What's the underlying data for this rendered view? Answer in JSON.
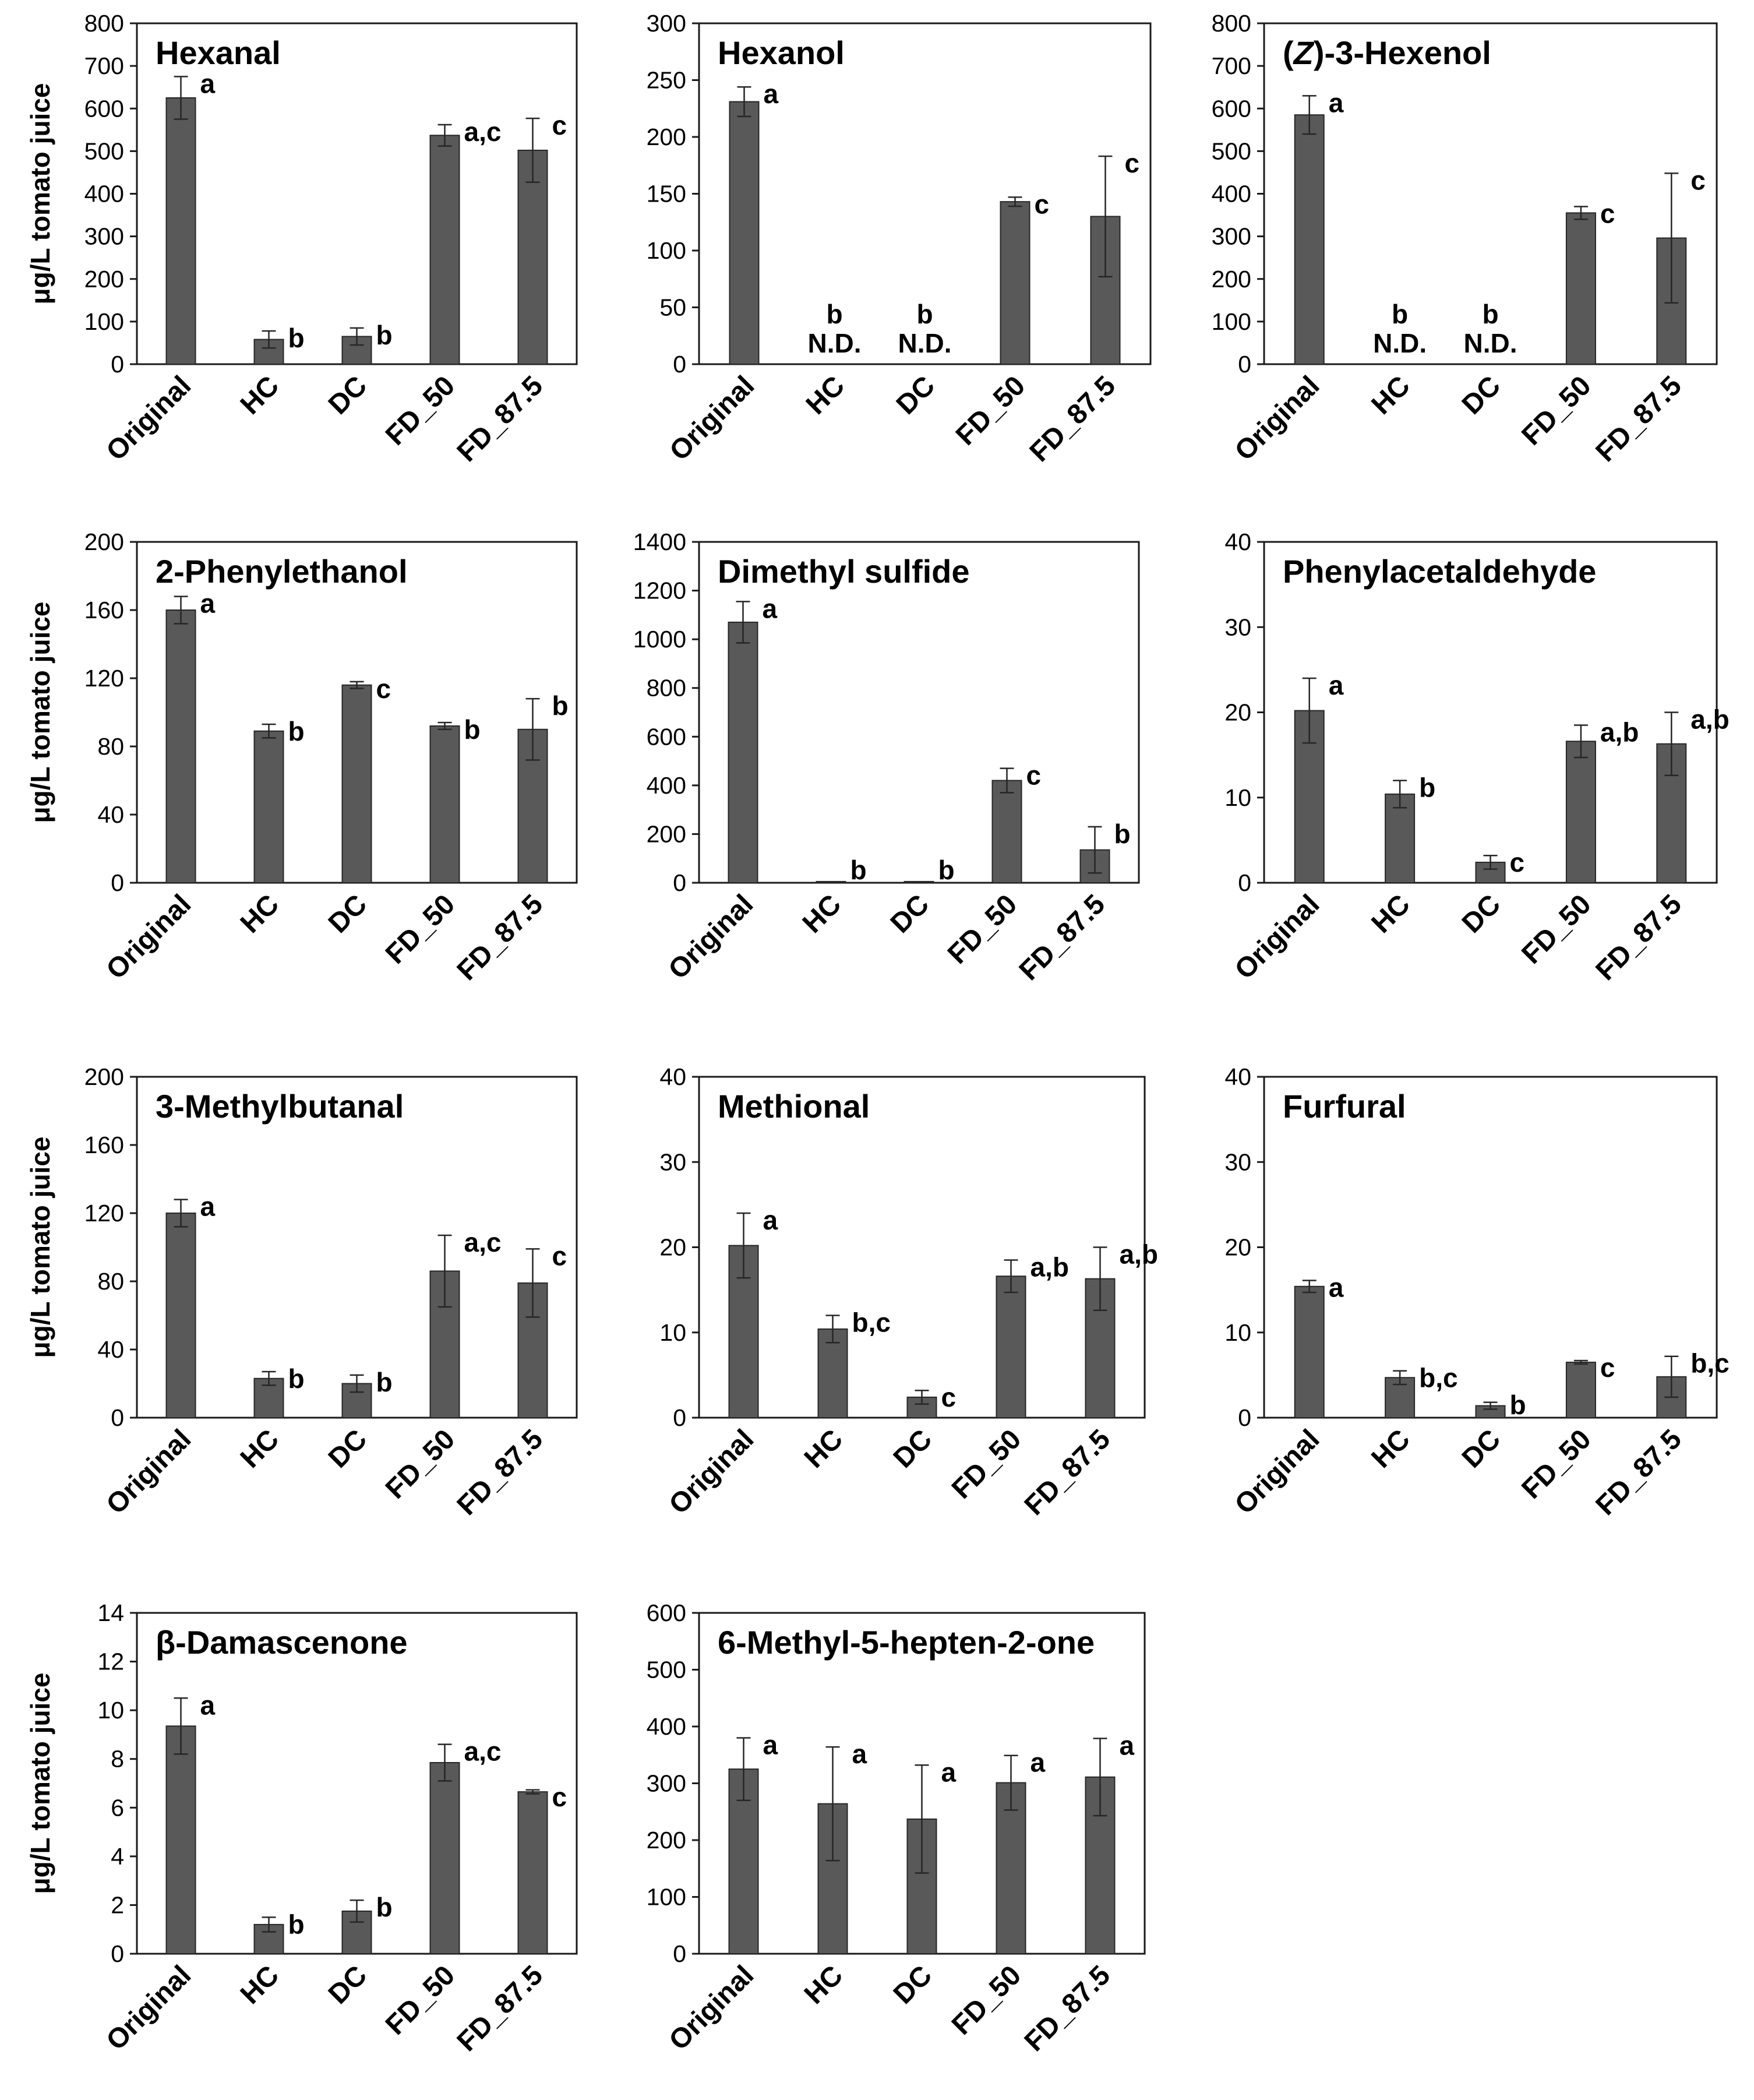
{
  "chart_data": [
    {
      "type": "bar",
      "title": "Hexanal",
      "ylabel": "μg/L tomato juice",
      "ylim": [
        0,
        800
      ],
      "yticks": [
        0,
        100,
        200,
        300,
        400,
        500,
        600,
        700,
        800
      ],
      "categories": [
        "Original",
        "HC",
        "DC",
        "FD_50",
        "FD_87.5"
      ],
      "values": [
        625,
        58,
        65,
        537,
        502
      ],
      "errors": [
        50,
        20,
        20,
        25,
        75
      ],
      "significance": [
        "a",
        "b",
        "b",
        "a,c",
        "c"
      ],
      "not_detected": [
        false,
        false,
        false,
        false,
        false
      ]
    },
    {
      "type": "bar",
      "title": "Hexanol",
      "ylabel": "",
      "ylim": [
        0,
        300
      ],
      "yticks": [
        0,
        50,
        100,
        150,
        200,
        250,
        300
      ],
      "categories": [
        "Original",
        "HC",
        "DC",
        "FD_50",
        "FD_87.5"
      ],
      "values": [
        231,
        0,
        0,
        143,
        130
      ],
      "errors": [
        13,
        0,
        0,
        4,
        53
      ],
      "significance": [
        "a",
        "b",
        "b",
        "c",
        "c"
      ],
      "not_detected": [
        false,
        true,
        true,
        false,
        false
      ],
      "nd_label": "N.D."
    },
    {
      "type": "bar",
      "title": "(Z)-3-Hexenol",
      "ylabel": "",
      "ylim": [
        0,
        800
      ],
      "yticks": [
        0,
        100,
        200,
        300,
        400,
        500,
        600,
        700,
        800
      ],
      "categories": [
        "Original",
        "HC",
        "DC",
        "FD_50",
        "FD_87.5"
      ],
      "values": [
        585,
        0,
        0,
        355,
        296
      ],
      "errors": [
        45,
        0,
        0,
        15,
        152
      ],
      "significance": [
        "a",
        "b",
        "b",
        "c",
        "c"
      ],
      "not_detected": [
        false,
        true,
        true,
        false,
        false
      ],
      "nd_label": "N.D."
    },
    {
      "type": "bar",
      "title": "2-Phenylethanol",
      "ylabel": "μg/L tomato juice",
      "ylim": [
        0,
        200
      ],
      "yticks": [
        0,
        40,
        80,
        120,
        160,
        200
      ],
      "categories": [
        "Original",
        "HC",
        "DC",
        "FD_50",
        "FD_87.5"
      ],
      "values": [
        160,
        89,
        116,
        92,
        90
      ],
      "errors": [
        8,
        4,
        2,
        2,
        18
      ],
      "significance": [
        "a",
        "b",
        "c",
        "b",
        "b"
      ],
      "not_detected": [
        false,
        false,
        false,
        false,
        false
      ]
    },
    {
      "type": "bar",
      "title": "Dimethyl sulfide",
      "ylabel": "",
      "ylim": [
        0,
        1400
      ],
      "yticks": [
        0,
        200,
        400,
        600,
        800,
        1000,
        1200,
        1400
      ],
      "categories": [
        "Original",
        "HC",
        "DC",
        "FD_50",
        "FD_87.5"
      ],
      "values": [
        1070,
        5,
        5,
        420,
        135
      ],
      "errors": [
        85,
        0,
        0,
        50,
        95
      ],
      "significance": [
        "a",
        "b",
        "b",
        "c",
        "b"
      ],
      "not_detected": [
        false,
        false,
        false,
        false,
        false
      ]
    },
    {
      "type": "bar",
      "title": "Phenylacetaldehyde",
      "ylabel": "",
      "ylim": [
        0,
        40
      ],
      "yticks": [
        0,
        10,
        20,
        30,
        40
      ],
      "categories": [
        "Original",
        "HC",
        "DC",
        "FD_50",
        "FD_87.5"
      ],
      "values": [
        20.2,
        10.4,
        2.4,
        16.6,
        16.3
      ],
      "errors": [
        3.8,
        1.6,
        0.8,
        1.9,
        3.7
      ],
      "significance": [
        "a",
        "b",
        "c",
        "a,b",
        "a,b"
      ],
      "not_detected": [
        false,
        false,
        false,
        false,
        false
      ]
    },
    {
      "type": "bar",
      "title": "3-Methylbutanal",
      "ylabel": "μg/L tomato juice",
      "ylim": [
        0,
        200
      ],
      "yticks": [
        0,
        40,
        80,
        120,
        160,
        200
      ],
      "categories": [
        "Original",
        "HC",
        "DC",
        "FD_50",
        "FD_87.5"
      ],
      "values": [
        120,
        23,
        20,
        86,
        79
      ],
      "errors": [
        8,
        4,
        5,
        21,
        20
      ],
      "significance": [
        "a",
        "b",
        "b",
        "a,c",
        "c"
      ],
      "not_detected": [
        false,
        false,
        false,
        false,
        false
      ]
    },
    {
      "type": "bar",
      "title": "Methional",
      "ylabel": "",
      "ylim": [
        0,
        40
      ],
      "yticks": [
        0,
        10,
        20,
        30,
        40
      ],
      "categories": [
        "Original",
        "HC",
        "DC",
        "FD_50",
        "FD_87.5"
      ],
      "values": [
        20.2,
        10.4,
        2.4,
        16.6,
        16.3
      ],
      "errors": [
        3.8,
        1.6,
        0.8,
        1.9,
        3.7
      ],
      "significance": [
        "a",
        "b,c",
        "c",
        "a,b",
        "a,b"
      ],
      "not_detected": [
        false,
        false,
        false,
        false,
        false
      ]
    },
    {
      "type": "bar",
      "title": "Furfural",
      "ylabel": "",
      "ylim": [
        0,
        40
      ],
      "yticks": [
        0,
        10,
        20,
        30,
        40
      ],
      "categories": [
        "Original",
        "HC",
        "DC",
        "FD_50",
        "FD_87.5"
      ],
      "values": [
        15.4,
        4.7,
        1.4,
        6.5,
        4.8
      ],
      "errors": [
        0.7,
        0.8,
        0.4,
        0.2,
        2.4
      ],
      "significance": [
        "a",
        "b,c",
        "b",
        "c",
        "b,c"
      ],
      "not_detected": [
        false,
        false,
        false,
        false,
        false
      ]
    },
    {
      "type": "bar",
      "title": "β-Damascenone",
      "ylabel": "μg/L tomato juice",
      "ylim": [
        0,
        14
      ],
      "yticks": [
        0,
        2,
        4,
        6,
        8,
        10,
        12,
        14
      ],
      "categories": [
        "Original",
        "HC",
        "DC",
        "FD_50",
        "FD_87.5"
      ],
      "values": [
        9.35,
        1.2,
        1.75,
        7.85,
        6.65
      ],
      "errors": [
        1.15,
        0.3,
        0.45,
        0.75,
        0.08
      ],
      "significance": [
        "a",
        "b",
        "b",
        "a,c",
        "c"
      ],
      "not_detected": [
        false,
        false,
        false,
        false,
        false
      ]
    },
    {
      "type": "bar",
      "title": "6-Methyl-5-hepten-2-one",
      "ylabel": "",
      "ylim": [
        0,
        600
      ],
      "yticks": [
        0,
        100,
        200,
        300,
        400,
        500,
        600
      ],
      "categories": [
        "Original",
        "HC",
        "DC",
        "FD_50",
        "FD_87.5"
      ],
      "values": [
        325,
        264,
        237,
        301,
        311
      ],
      "errors": [
        55,
        100,
        95,
        48,
        68
      ],
      "significance": [
        "a",
        "a",
        "a",
        "a",
        "a"
      ],
      "not_detected": [
        false,
        false,
        false,
        false,
        false
      ]
    }
  ]
}
